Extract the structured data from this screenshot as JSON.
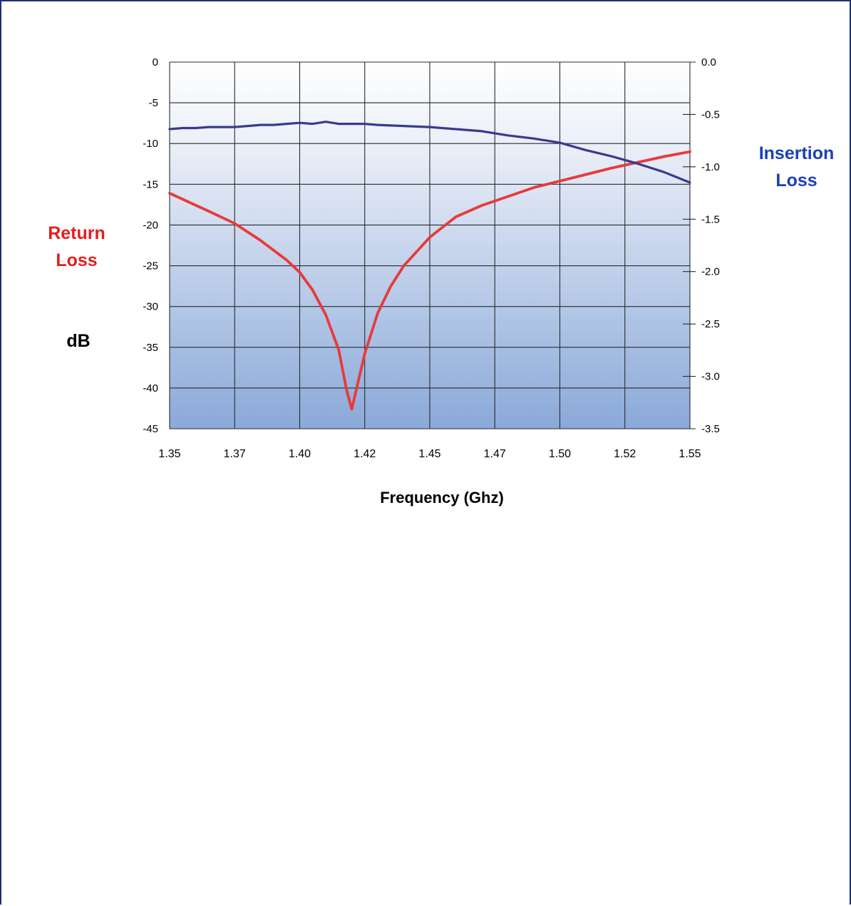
{
  "labels": {
    "return_loss_line1": "Return",
    "return_loss_line2": "Loss",
    "insertion_loss_line1": "Insertion",
    "insertion_loss_line2": "Loss",
    "unit": "dB",
    "x_axis_title": "Frequency (Ghz)"
  },
  "colors": {
    "return_loss": "#e83a3a",
    "insertion_loss": "#3a3a8e",
    "return_label": "#e41e1e",
    "insertion_label": "#1c40b8",
    "grid": "#2a2a2a",
    "bg_top": "#ffffff",
    "bg_bottom": "#8aa9d9"
  },
  "chart_data": {
    "type": "line",
    "xlabel": "Frequency (Ghz)",
    "x_tick_labels": [
      "1.35",
      "1.37",
      "1.40",
      "1.42",
      "1.45",
      "1.47",
      "1.50",
      "1.52",
      "1.55"
    ],
    "x_ticks": [
      1.35,
      1.375,
      1.4,
      1.425,
      1.45,
      1.475,
      1.5,
      1.525,
      1.55
    ],
    "xlim": [
      1.35,
      1.55
    ],
    "y_left": {
      "label": "Return Loss dB",
      "ylim": [
        -45,
        0
      ],
      "tick_labels": [
        "0",
        "-5",
        "-10",
        "-15",
        "-20",
        "-25",
        "-30",
        "-35",
        "-40",
        "-45"
      ],
      "ticks": [
        0,
        -5,
        -10,
        -15,
        -20,
        -25,
        -30,
        -35,
        -40,
        -45
      ]
    },
    "y_right": {
      "label": "Insertion Loss",
      "ylim": [
        -3.5,
        0.0
      ],
      "tick_labels": [
        "0.0",
        "-0.5",
        "-1.0",
        "-1.5",
        "-2.0",
        "-2.5",
        "-3.0",
        "-3.5"
      ],
      "ticks": [
        0.0,
        -0.5,
        -1.0,
        -1.5,
        -2.0,
        -2.5,
        -3.0,
        -3.5
      ]
    },
    "grid": true,
    "series": [
      {
        "name": "Return Loss",
        "axis": "left",
        "x": [
          1.35,
          1.365,
          1.375,
          1.385,
          1.395,
          1.4,
          1.405,
          1.41,
          1.415,
          1.418,
          1.42,
          1.425,
          1.43,
          1.435,
          1.44,
          1.45,
          1.46,
          1.47,
          1.48,
          1.49,
          1.5,
          1.51,
          1.52,
          1.53,
          1.54,
          1.55
        ],
        "values": [
          -16.1,
          -18.3,
          -19.8,
          -21.9,
          -24.3,
          -25.8,
          -28.0,
          -31.0,
          -35.3,
          -40.2,
          -42.6,
          -35.8,
          -30.8,
          -27.5,
          -25.0,
          -21.5,
          -19.0,
          -17.6,
          -16.5,
          -15.4,
          -14.6,
          -13.8,
          -13.0,
          -12.3,
          -11.6,
          -11.0
        ]
      },
      {
        "name": "Insertion Loss",
        "axis": "right",
        "x": [
          1.35,
          1.355,
          1.36,
          1.365,
          1.37,
          1.375,
          1.38,
          1.385,
          1.39,
          1.395,
          1.4,
          1.405,
          1.41,
          1.415,
          1.42,
          1.425,
          1.43,
          1.44,
          1.45,
          1.46,
          1.47,
          1.48,
          1.49,
          1.5,
          1.51,
          1.52,
          1.53,
          1.54,
          1.55
        ],
        "values": [
          -0.64,
          -0.63,
          -0.63,
          -0.62,
          -0.62,
          -0.62,
          -0.61,
          -0.6,
          -0.6,
          -0.59,
          -0.58,
          -0.59,
          -0.57,
          -0.59,
          -0.59,
          -0.59,
          -0.6,
          -0.61,
          -0.62,
          -0.64,
          -0.66,
          -0.7,
          -0.73,
          -0.77,
          -0.84,
          -0.9,
          -0.97,
          -1.05,
          -1.15
        ]
      }
    ]
  }
}
